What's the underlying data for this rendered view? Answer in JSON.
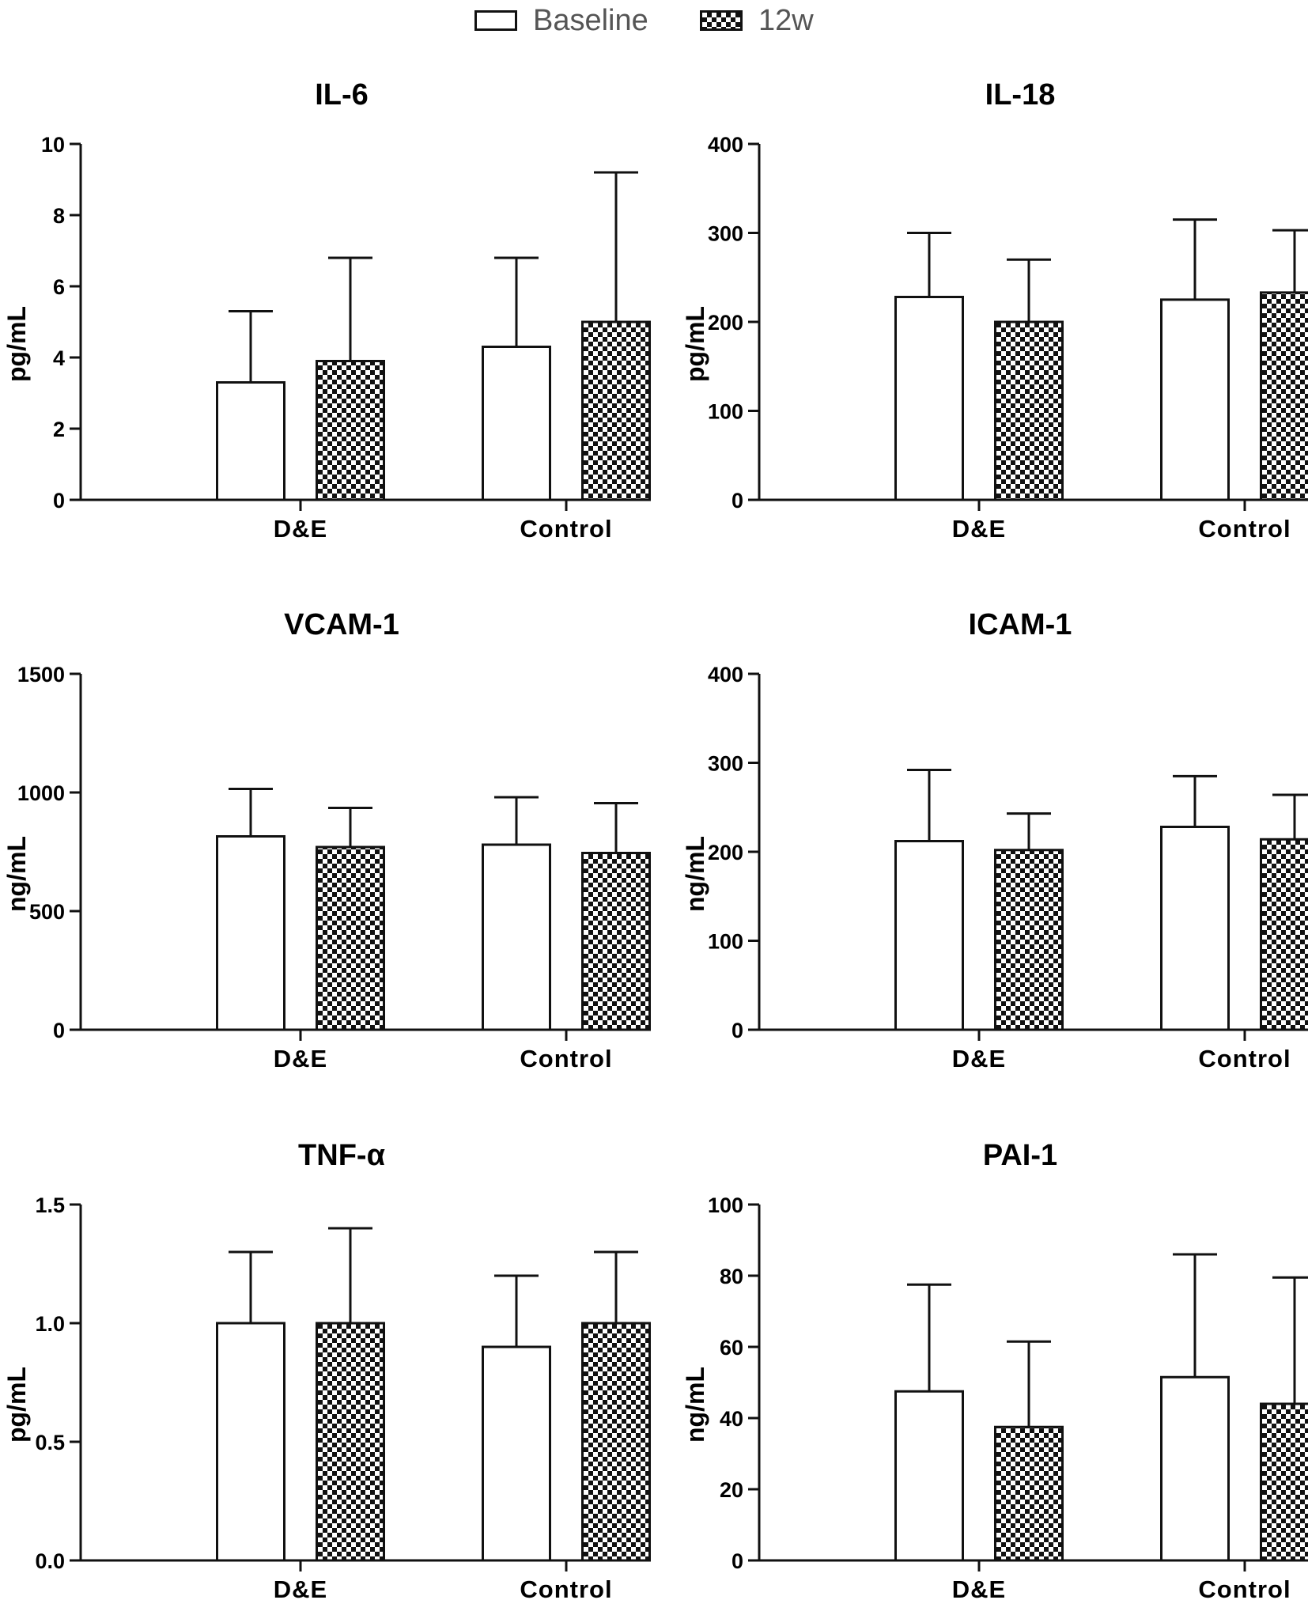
{
  "legend": {
    "baseline_label": "Baseline",
    "w12_label": "12w"
  },
  "chart_data": [
    {
      "type": "bar",
      "title": "IL-6",
      "ylabel": "pg/mL",
      "xlabel": "",
      "categories": [
        "D&E",
        "Control"
      ],
      "ylim": [
        0,
        10
      ],
      "yticks": [
        "0",
        "2",
        "4",
        "6",
        "8",
        "10"
      ],
      "series": [
        {
          "name": "Baseline",
          "values": [
            3.3,
            4.3
          ],
          "errors": [
            2.0,
            2.5
          ]
        },
        {
          "name": "12w",
          "values": [
            3.9,
            5.0
          ],
          "errors": [
            2.9,
            4.2
          ]
        }
      ]
    },
    {
      "type": "bar",
      "title": "IL-18",
      "ylabel": "pg/mL",
      "xlabel": "",
      "categories": [
        "D&E",
        "Control"
      ],
      "ylim": [
        0,
        400
      ],
      "yticks": [
        "0",
        "100",
        "200",
        "300",
        "400"
      ],
      "series": [
        {
          "name": "Baseline",
          "values": [
            228,
            225
          ],
          "errors": [
            72,
            90
          ]
        },
        {
          "name": "12w",
          "values": [
            200,
            233
          ],
          "errors": [
            70,
            70
          ]
        }
      ]
    },
    {
      "type": "bar",
      "title": "VCAM-1",
      "ylabel": "ng/mL",
      "xlabel": "",
      "categories": [
        "D&E",
        "Control"
      ],
      "ylim": [
        0,
        1500
      ],
      "yticks": [
        "0",
        "500",
        "1000",
        "1500"
      ],
      "series": [
        {
          "name": "Baseline",
          "values": [
            815,
            780
          ],
          "errors": [
            200,
            200
          ]
        },
        {
          "name": "12w",
          "values": [
            770,
            745
          ],
          "errors": [
            165,
            210
          ]
        }
      ]
    },
    {
      "type": "bar",
      "title": "ICAM-1",
      "ylabel": "ng/mL",
      "xlabel": "",
      "categories": [
        "D&E",
        "Control"
      ],
      "ylim": [
        0,
        400
      ],
      "yticks": [
        "0",
        "100",
        "200",
        "300",
        "400"
      ],
      "series": [
        {
          "name": "Baseline",
          "values": [
            212,
            228
          ],
          "errors": [
            80,
            57
          ]
        },
        {
          "name": "12w",
          "values": [
            202,
            214
          ],
          "errors": [
            41,
            50
          ]
        }
      ]
    },
    {
      "type": "bar",
      "title": "TNF-α",
      "ylabel": "pg/mL",
      "xlabel": "",
      "categories": [
        "D&E",
        "Control"
      ],
      "ylim": [
        0,
        1.5
      ],
      "yticks": [
        "0.0",
        "0.5",
        "1.0",
        "1.5"
      ],
      "series": [
        {
          "name": "Baseline",
          "values": [
            1.0,
            0.9
          ],
          "errors": [
            0.3,
            0.3
          ]
        },
        {
          "name": "12w",
          "values": [
            1.0,
            1.0
          ],
          "errors": [
            0.4,
            0.3
          ]
        }
      ]
    },
    {
      "type": "bar",
      "title": "PAI-1",
      "ylabel": "ng/mL",
      "xlabel": "",
      "categories": [
        "D&E",
        "Control"
      ],
      "ylim": [
        0,
        100
      ],
      "yticks": [
        "0",
        "20",
        "40",
        "60",
        "80",
        "100"
      ],
      "series": [
        {
          "name": "Baseline",
          "values": [
            47.5,
            51.5
          ],
          "errors": [
            30,
            34.5
          ]
        },
        {
          "name": "12w",
          "values": [
            37.5,
            44
          ],
          "errors": [
            24,
            35.5
          ]
        }
      ]
    }
  ]
}
